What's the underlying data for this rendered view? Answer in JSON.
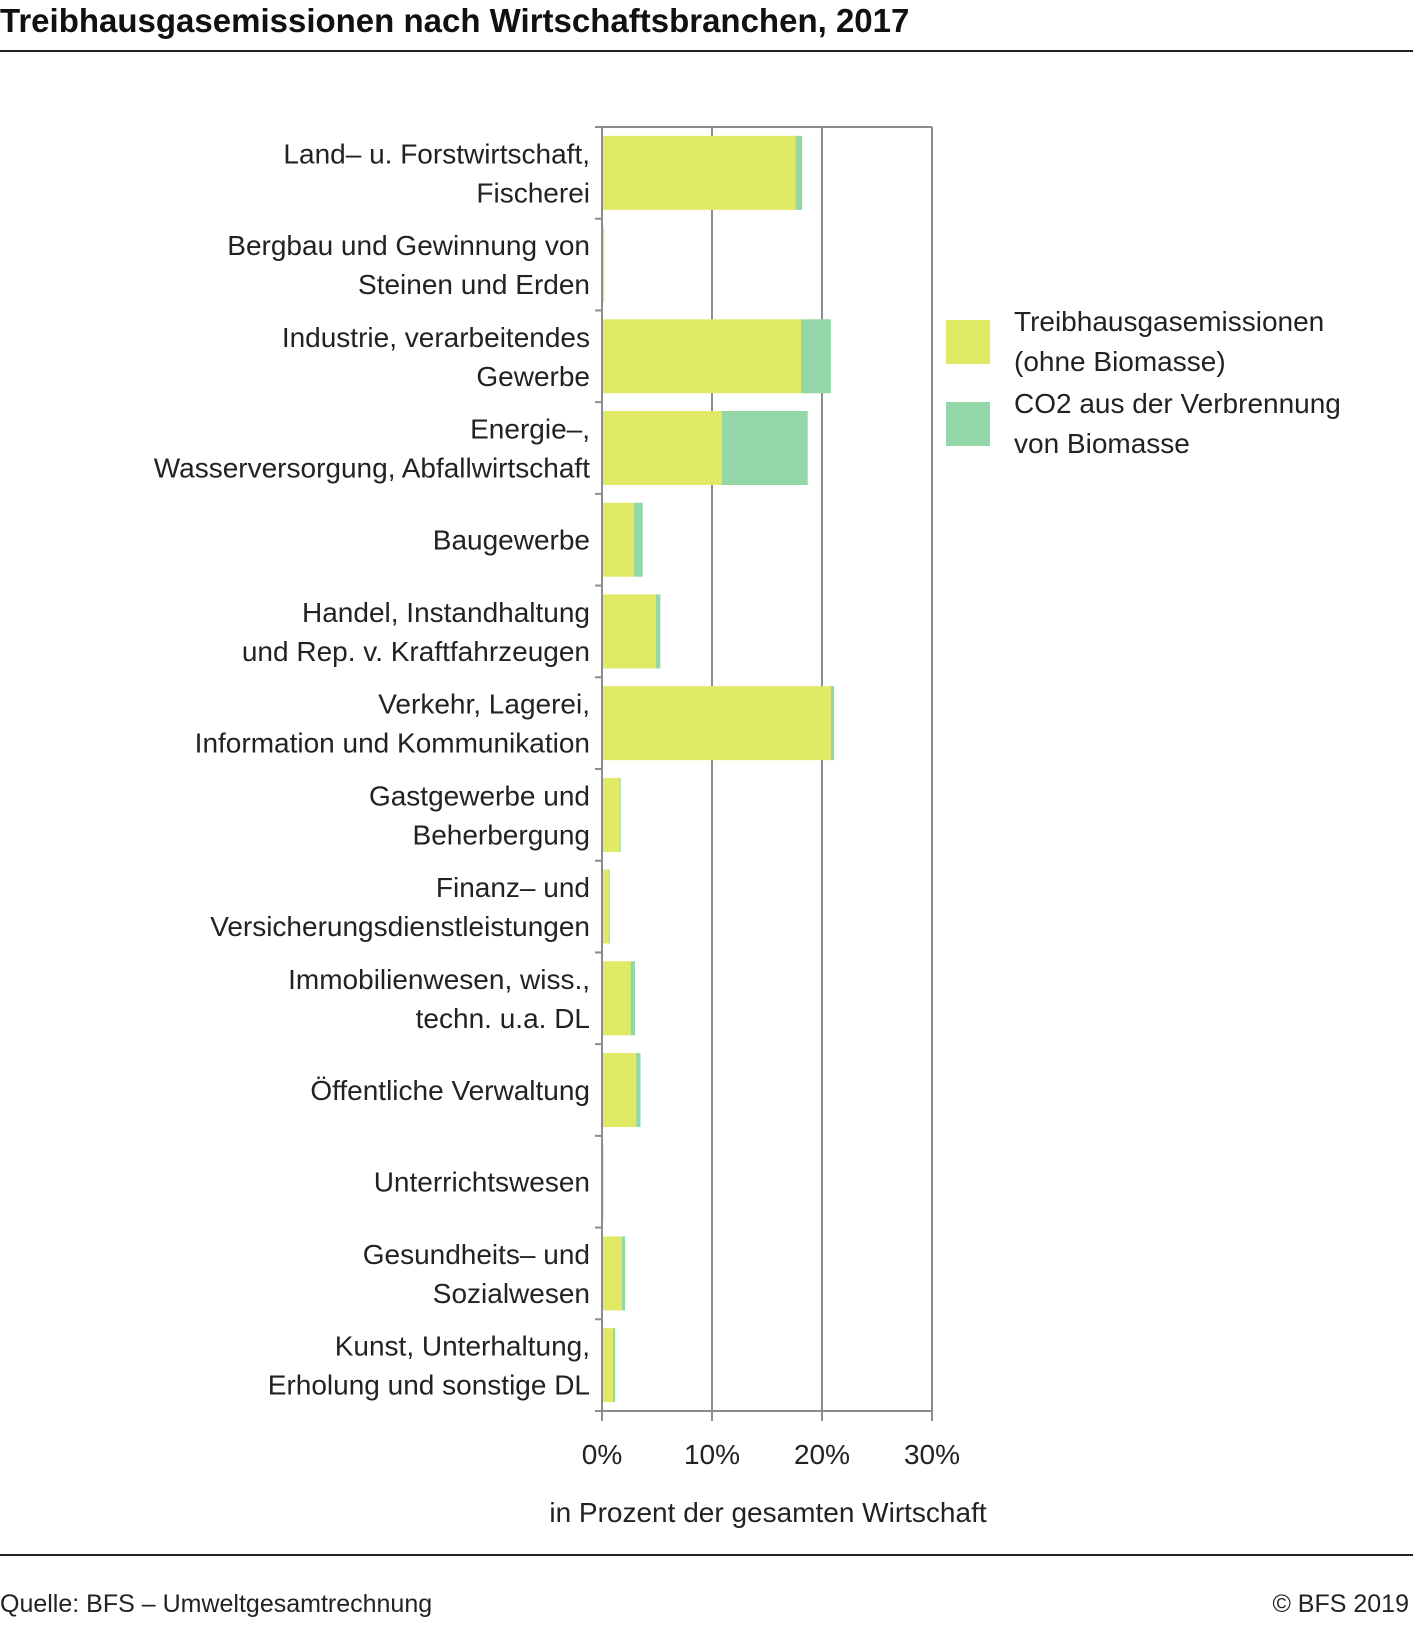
{
  "header": {
    "title": "Treibhausgasemissionen nach Wirtschaftsbranchen, 2017"
  },
  "footer": {
    "source": "Quelle: BFS – Umweltgesamtrechnung",
    "copyright": "© BFS 2019"
  },
  "colors": {
    "ghg": "#e1ea64",
    "biomass": "#93d6a8",
    "axis": "#8c8c8c",
    "grid": "#8c8c8c"
  },
  "chart_data": {
    "type": "bar",
    "orientation": "horizontal",
    "stacked": true,
    "xlabel": "in Prozent der gesamten Wirtschaft",
    "xlim": [
      0,
      30
    ],
    "xticks": [
      0,
      10,
      20,
      30
    ],
    "xtick_labels": [
      "0%",
      "10%",
      "20%",
      "30%"
    ],
    "grid": true,
    "legend_position": "right",
    "categories": [
      [
        "Land– u. Forstwirtschaft,",
        "Fischerei"
      ],
      [
        "Bergbau und Gewinnung von",
        "Steinen und Erden"
      ],
      [
        "Industrie, verarbeitendes",
        "Gewerbe"
      ],
      [
        "Energie–,",
        "Wasserversorgung, Abfallwirtschaft"
      ],
      [
        "Baugewerbe"
      ],
      [
        "Handel, Instandhaltung",
        "und Rep. v. Kraftfahrzeugen"
      ],
      [
        "Verkehr, Lagerei,",
        "Information und Kommunikation"
      ],
      [
        "Gastgewerbe und",
        "Beherbergung"
      ],
      [
        "Finanz– und",
        "Versicherungsdienstleistungen"
      ],
      [
        "Immobilienwesen, wiss.,",
        "techn. u.a. DL"
      ],
      [
        "Öffentliche Verwaltung"
      ],
      [
        "Unterrichtswesen"
      ],
      [
        "Gesundheits– und",
        "Sozialwesen"
      ],
      [
        "Kunst, Unterhaltung,",
        "Erholung und sonstige DL"
      ]
    ],
    "series": [
      {
        "name": "Treibhausgasemissionen (ohne Biomasse)",
        "legend_lines": [
          "Treibhausgasemissionen",
          "(ohne Biomasse)"
        ],
        "values": [
          17.6,
          0.2,
          18.1,
          10.9,
          2.9,
          4.9,
          20.8,
          1.6,
          0.6,
          2.6,
          3.1,
          0.15,
          1.8,
          1.0
        ]
      },
      {
        "name": "CO2 aus der Verbrennung von Biomasse",
        "legend_lines": [
          "CO2 aus der Verbrennung",
          "von Biomasse"
        ],
        "values": [
          0.6,
          0.0,
          2.7,
          7.8,
          0.8,
          0.4,
          0.3,
          0.1,
          0.1,
          0.4,
          0.4,
          0.0,
          0.3,
          0.2
        ]
      }
    ]
  }
}
